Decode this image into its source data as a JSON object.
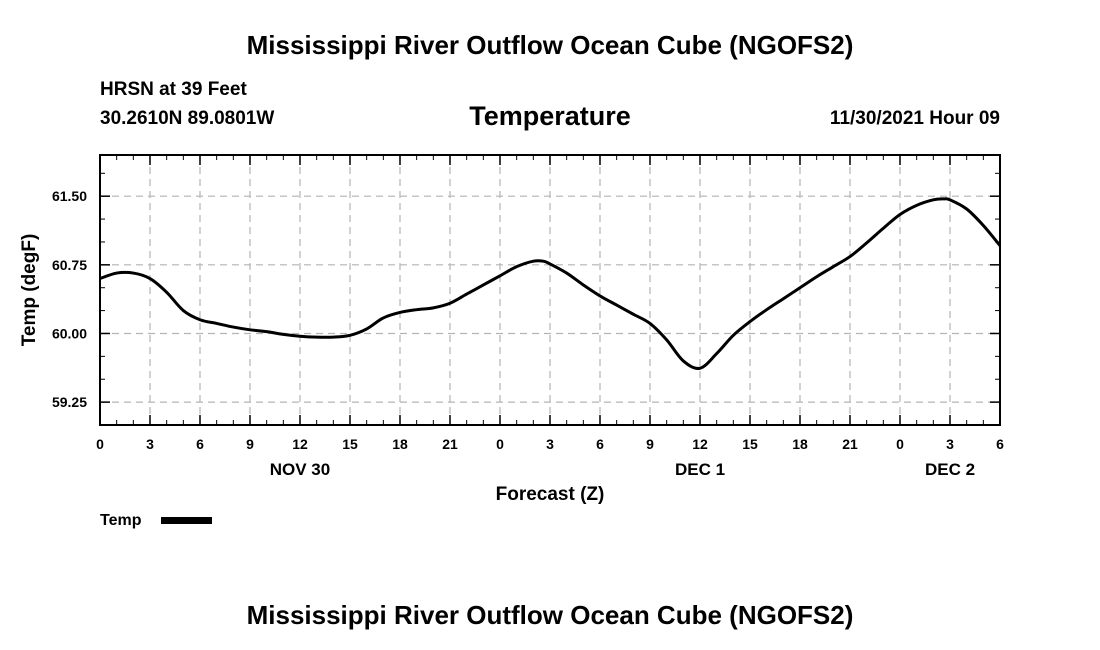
{
  "page": {
    "title_top": "Mississippi River Outflow Ocean Cube (NGOFS2)",
    "title_bottom": "Mississippi River Outflow Ocean Cube (NGOFS2)",
    "station": "HRSN at 39 Feet",
    "coords": "30.2610N  89.0801W",
    "datetime": "11/30/2021 Hour 09"
  },
  "chart_data": {
    "type": "line",
    "title": "Temperature",
    "xlabel": "Forecast (Z)",
    "ylabel": "Temp (degF)",
    "xlim": [
      0,
      54
    ],
    "ylim": [
      59.0,
      61.95
    ],
    "yticks": [
      59.25,
      60.0,
      60.75,
      61.5
    ],
    "ytick_labels": [
      "59.25",
      "60.00",
      "60.75",
      "61.50"
    ],
    "xticks": [
      0,
      3,
      6,
      9,
      12,
      15,
      18,
      21,
      24,
      27,
      30,
      33,
      36,
      39,
      42,
      45,
      48,
      51,
      54
    ],
    "xtick_labels": [
      "0",
      "3",
      "6",
      "9",
      "12",
      "15",
      "18",
      "21",
      "0",
      "3",
      "6",
      "9",
      "12",
      "15",
      "18",
      "21",
      "0",
      "3",
      "6"
    ],
    "day_labels": [
      {
        "x": 12,
        "label": "NOV 30"
      },
      {
        "x": 36,
        "label": "DEC 1"
      },
      {
        "x": 51,
        "label": "DEC 2"
      }
    ],
    "grid": true,
    "legend_position": "bottom-left",
    "series": [
      {
        "name": "Temp",
        "color": "#000000",
        "x": [
          0,
          1,
          2,
          3,
          4,
          5,
          6,
          7,
          8,
          9,
          10,
          11,
          12,
          13,
          14,
          15,
          16,
          17,
          18,
          19,
          20,
          21,
          22,
          23,
          24,
          25,
          26,
          26.6,
          27,
          28,
          29,
          30,
          31,
          32,
          33,
          34,
          35,
          36,
          37,
          38,
          39,
          40,
          41,
          42,
          43,
          44,
          45,
          46,
          47,
          48,
          49,
          50,
          50.6,
          51,
          52,
          53,
          54
        ],
        "y": [
          60.6,
          60.66,
          60.66,
          60.6,
          60.45,
          60.25,
          60.15,
          60.11,
          60.07,
          60.04,
          60.02,
          59.99,
          59.97,
          59.96,
          59.96,
          59.98,
          60.05,
          60.17,
          60.23,
          60.26,
          60.28,
          60.33,
          60.43,
          60.53,
          60.63,
          60.73,
          60.79,
          60.79,
          60.76,
          60.66,
          60.53,
          60.41,
          60.31,
          60.21,
          60.11,
          59.93,
          59.7,
          59.62,
          59.78,
          59.98,
          60.13,
          60.26,
          60.38,
          60.5,
          60.62,
          60.73,
          60.84,
          60.99,
          61.15,
          61.3,
          61.4,
          61.46,
          61.47,
          61.46,
          61.36,
          61.18,
          60.96
        ]
      }
    ]
  }
}
